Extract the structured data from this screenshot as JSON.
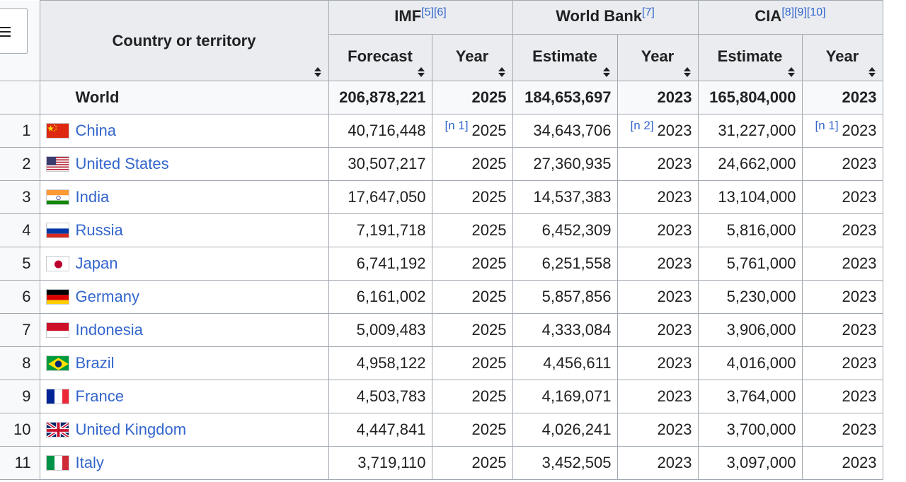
{
  "header": {
    "country_label": "Country or territory",
    "imf": {
      "label": "IMF",
      "refs": "[5][6]"
    },
    "world_bank": {
      "label": "World Bank",
      "refs": "[7]"
    },
    "cia": {
      "label": "CIA",
      "refs": "[8][9][10]"
    },
    "forecast": "Forecast",
    "estimate": "Estimate",
    "year": "Year"
  },
  "world": {
    "name": "World",
    "imf_value": "206,878,221",
    "imf_year": "2025",
    "wb_value": "184,653,697",
    "wb_year": "2023",
    "cia_value": "165,804,000",
    "cia_year": "2023"
  },
  "rows": [
    {
      "rank": "1",
      "country": "China",
      "flag": "china",
      "imf": "40,716,448",
      "imf_note": "[n 1]",
      "imf_year": "2025",
      "wb": "34,643,706",
      "wb_note": "[n 2]",
      "wb_year": "2023",
      "cia": "31,227,000",
      "cia_note": "[n 1]",
      "cia_year": "2023"
    },
    {
      "rank": "2",
      "country": "United States",
      "flag": "usa",
      "imf": "30,507,217",
      "imf_note": "",
      "imf_year": "2025",
      "wb": "27,360,935",
      "wb_note": "",
      "wb_year": "2023",
      "cia": "24,662,000",
      "cia_note": "",
      "cia_year": "2023"
    },
    {
      "rank": "3",
      "country": "India",
      "flag": "india",
      "imf": "17,647,050",
      "imf_note": "",
      "imf_year": "2025",
      "wb": "14,537,383",
      "wb_note": "",
      "wb_year": "2023",
      "cia": "13,104,000",
      "cia_note": "",
      "cia_year": "2023"
    },
    {
      "rank": "4",
      "country": "Russia",
      "flag": "russia",
      "imf": "7,191,718",
      "imf_note": "",
      "imf_year": "2025",
      "wb": "6,452,309",
      "wb_note": "",
      "wb_year": "2023",
      "cia": "5,816,000",
      "cia_note": "",
      "cia_year": "2023"
    },
    {
      "rank": "5",
      "country": "Japan",
      "flag": "japan",
      "imf": "6,741,192",
      "imf_note": "",
      "imf_year": "2025",
      "wb": "6,251,558",
      "wb_note": "",
      "wb_year": "2023",
      "cia": "5,761,000",
      "cia_note": "",
      "cia_year": "2023"
    },
    {
      "rank": "6",
      "country": "Germany",
      "flag": "germany",
      "imf": "6,161,002",
      "imf_note": "",
      "imf_year": "2025",
      "wb": "5,857,856",
      "wb_note": "",
      "wb_year": "2023",
      "cia": "5,230,000",
      "cia_note": "",
      "cia_year": "2023"
    },
    {
      "rank": "7",
      "country": "Indonesia",
      "flag": "indonesia",
      "imf": "5,009,483",
      "imf_note": "",
      "imf_year": "2025",
      "wb": "4,333,084",
      "wb_note": "",
      "wb_year": "2023",
      "cia": "3,906,000",
      "cia_note": "",
      "cia_year": "2023"
    },
    {
      "rank": "8",
      "country": "Brazil",
      "flag": "brazil",
      "imf": "4,958,122",
      "imf_note": "",
      "imf_year": "2025",
      "wb": "4,456,611",
      "wb_note": "",
      "wb_year": "2023",
      "cia": "4,016,000",
      "cia_note": "",
      "cia_year": "2023"
    },
    {
      "rank": "9",
      "country": "France",
      "flag": "france",
      "imf": "4,503,783",
      "imf_note": "",
      "imf_year": "2025",
      "wb": "4,169,071",
      "wb_note": "",
      "wb_year": "2023",
      "cia": "3,764,000",
      "cia_note": "",
      "cia_year": "2023"
    },
    {
      "rank": "10",
      "country": "United Kingdom",
      "flag": "uk",
      "imf": "4,447,841",
      "imf_note": "",
      "imf_year": "2025",
      "wb": "4,026,241",
      "wb_note": "",
      "wb_year": "2023",
      "cia": "3,700,000",
      "cia_note": "",
      "cia_year": "2023"
    },
    {
      "rank": "11",
      "country": "Italy",
      "flag": "italy",
      "imf": "3,719,110",
      "imf_note": "",
      "imf_year": "2025",
      "wb": "3,452,505",
      "wb_note": "",
      "wb_year": "2023",
      "cia": "3,097,000",
      "cia_note": "",
      "cia_year": "2023"
    }
  ],
  "colors": {
    "link": "#3366cc",
    "header_bg": "#eaecf0",
    "border": "#a2a9b1"
  }
}
